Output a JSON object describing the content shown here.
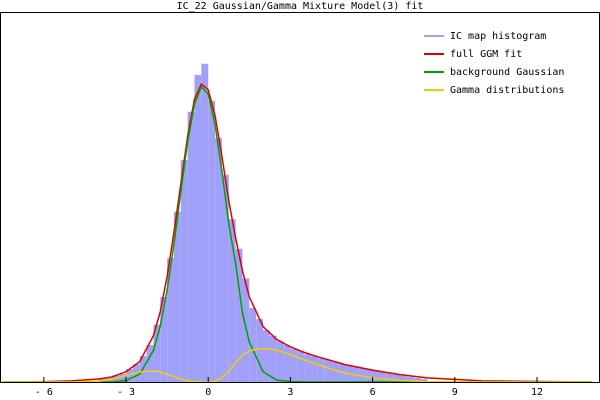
{
  "chart_data": {
    "type": "histogram",
    "title": "IC_22 Gaussian/Gamma Mixture Model(3) fit",
    "xlim": [
      -7.6,
      14.3
    ],
    "ylim": [
      0,
      1
    ],
    "xticks": [
      {
        "value": -6,
        "label": "- 6"
      },
      {
        "value": -3,
        "label": "- 3"
      },
      0,
      3,
      6,
      9,
      12
    ],
    "legend": "top-right",
    "histogram": {
      "name": "IC map histogram",
      "color": "#a0a0f8",
      "bins": [
        -4,
        -3.75,
        -3.5,
        -3.25,
        -3,
        -2.75,
        -2.5,
        -2.25,
        -2,
        -1.75,
        -1.5,
        -1.25,
        -1,
        -0.75,
        -0.5,
        -0.25,
        0,
        0.25,
        0.5,
        0.75,
        1,
        1.25,
        1.5,
        1.75,
        2,
        2.25,
        2.5,
        2.75,
        3,
        3.25,
        3.5,
        3.75,
        4,
        4.25,
        4.5,
        4.75,
        5,
        5.25,
        5.5,
        5.75,
        6,
        6.25,
        6.5,
        6.75,
        7,
        7.25,
        7.5,
        7.75,
        8
      ],
      "values": [
        0.01,
        0.012,
        0.018,
        0.022,
        0.035,
        0.048,
        0.07,
        0.1,
        0.155,
        0.23,
        0.335,
        0.46,
        0.6,
        0.73,
        0.83,
        0.86,
        0.76,
        0.66,
        0.56,
        0.44,
        0.36,
        0.28,
        0.2,
        0.17,
        0.14,
        0.125,
        0.11,
        0.1,
        0.09,
        0.085,
        0.075,
        0.07,
        0.064,
        0.06,
        0.055,
        0.05,
        0.046,
        0.042,
        0.038,
        0.034,
        0.03,
        0.027,
        0.024,
        0.02,
        0.017,
        0.014,
        0.011,
        0.008
      ]
    },
    "x": [
      -7.5,
      -6,
      -5,
      -4,
      -3.5,
      -3,
      -2.5,
      -2,
      -1.75,
      -1.5,
      -1.25,
      -1,
      -0.75,
      -0.5,
      -0.25,
      0,
      0.25,
      0.5,
      0.75,
      1,
      1.25,
      1.5,
      2,
      2.5,
      3,
      3.5,
      4,
      5,
      6,
      7,
      8,
      10,
      14
    ],
    "series": [
      {
        "name": "full GGM fit",
        "color": "#e00000",
        "values": [
          0,
          0.001,
          0.003,
          0.008,
          0.014,
          0.028,
          0.055,
          0.125,
          0.19,
          0.285,
          0.405,
          0.535,
          0.665,
          0.765,
          0.805,
          0.79,
          0.72,
          0.61,
          0.49,
          0.39,
          0.3,
          0.23,
          0.15,
          0.115,
          0.095,
          0.08,
          0.068,
          0.047,
          0.032,
          0.02,
          0.011,
          0.003,
          0
        ]
      },
      {
        "name": "background Gaussian",
        "color": "#00a000",
        "values": [
          0,
          0,
          0,
          0,
          0,
          0.004,
          0.021,
          0.085,
          0.152,
          0.248,
          0.373,
          0.514,
          0.649,
          0.752,
          0.798,
          0.778,
          0.695,
          0.57,
          0.428,
          0.32,
          0.187,
          0.108,
          0.028,
          0.005,
          0.001,
          0,
          0,
          0,
          0,
          0,
          0,
          0,
          0
        ]
      },
      {
        "name": "Gamma distributions",
        "color": "#f0d000",
        "values": [
          0,
          0,
          0,
          0.002,
          0.008,
          0.018,
          0.027,
          0.03,
          0.027,
          0.021,
          0.014,
          0.008,
          0.003,
          0.001,
          0,
          0,
          0.002,
          0.012,
          0.03,
          0.052,
          0.072,
          0.085,
          0.091,
          0.086,
          0.074,
          0.06,
          0.046,
          0.024,
          0.011,
          0.004,
          0.001,
          0,
          0
        ]
      }
    ]
  }
}
